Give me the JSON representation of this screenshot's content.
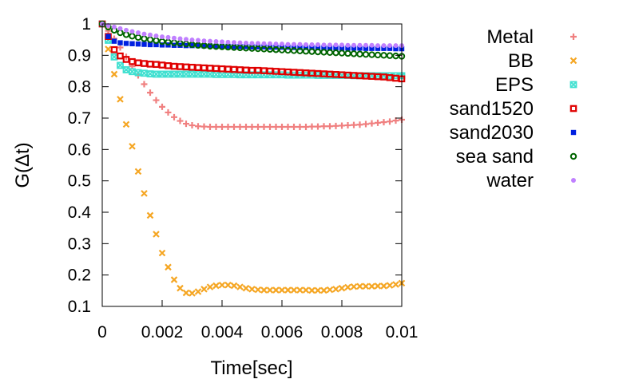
{
  "chart_data": {
    "type": "scatter",
    "title": "",
    "xlabel": "Time[sec]",
    "ylabel": "G(Δt)",
    "xlim": [
      0,
      0.01
    ],
    "ylim": [
      0.1,
      1.0
    ],
    "grid": false,
    "legend_position": "right, outside plot",
    "x_ticks": [
      {
        "value": 0,
        "label": "0"
      },
      {
        "value": 0.002,
        "label": "0.002"
      },
      {
        "value": 0.004,
        "label": "0.004"
      },
      {
        "value": 0.006,
        "label": "0.006"
      },
      {
        "value": 0.008,
        "label": "0.008"
      },
      {
        "value": 0.01,
        "label": "0.01"
      }
    ],
    "y_ticks": [
      {
        "value": 0.1,
        "label": "0.1"
      },
      {
        "value": 0.2,
        "label": "0.2"
      },
      {
        "value": 0.3,
        "label": "0.3"
      },
      {
        "value": 0.4,
        "label": "0.4"
      },
      {
        "value": 0.5,
        "label": "0.5"
      },
      {
        "value": 0.6,
        "label": "0.6"
      },
      {
        "value": 0.7,
        "label": "0.7"
      },
      {
        "value": 0.8,
        "label": "0.8"
      },
      {
        "value": 0.9,
        "label": "0.9"
      },
      {
        "value": 1.0,
        "label": "1"
      }
    ],
    "x_start": 0,
    "x_step": 0.0002,
    "series": [
      {
        "name": "Metal",
        "color": "#f08080",
        "marker": "plus",
        "values": [
          1.0,
          0.978,
          0.953,
          0.925,
          0.895,
          0.865,
          0.836,
          0.808,
          0.781,
          0.757,
          0.736,
          0.718,
          0.703,
          0.691,
          0.682,
          0.677,
          0.674,
          0.673,
          0.672,
          0.672,
          0.672,
          0.672,
          0.672,
          0.672,
          0.672,
          0.672,
          0.672,
          0.672,
          0.672,
          0.672,
          0.672,
          0.672,
          0.672,
          0.672,
          0.672,
          0.673,
          0.673,
          0.674,
          0.674,
          0.675,
          0.676,
          0.677,
          0.678,
          0.679,
          0.681,
          0.683,
          0.685,
          0.687,
          0.689,
          0.692,
          0.695
        ]
      },
      {
        "name": "BB",
        "color": "#f5a623",
        "marker": "cross",
        "values": [
          1.0,
          0.92,
          0.84,
          0.76,
          0.68,
          0.61,
          0.53,
          0.46,
          0.39,
          0.33,
          0.27,
          0.225,
          0.185,
          0.158,
          0.143,
          0.142,
          0.147,
          0.155,
          0.162,
          0.166,
          0.168,
          0.168,
          0.166,
          0.162,
          0.158,
          0.155,
          0.153,
          0.152,
          0.152,
          0.152,
          0.152,
          0.152,
          0.152,
          0.152,
          0.152,
          0.151,
          0.151,
          0.151,
          0.153,
          0.155,
          0.158,
          0.161,
          0.163,
          0.164,
          0.164,
          0.164,
          0.165,
          0.165,
          0.167,
          0.17,
          0.174
        ]
      },
      {
        "name": "EPS",
        "color": "#40e0d0",
        "marker": "xsquare",
        "values": [
          1.0,
          0.948,
          0.895,
          0.868,
          0.854,
          0.848,
          0.845,
          0.843,
          0.841,
          0.84,
          0.84,
          0.84,
          0.84,
          0.84,
          0.84,
          0.84,
          0.84,
          0.84,
          0.84,
          0.839,
          0.839,
          0.839,
          0.839,
          0.838,
          0.838,
          0.838,
          0.838,
          0.838,
          0.838,
          0.838,
          0.838,
          0.837,
          0.837,
          0.837,
          0.837,
          0.837,
          0.836,
          0.836,
          0.836,
          0.836,
          0.836,
          0.836,
          0.835,
          0.835,
          0.835,
          0.835,
          0.835,
          0.835,
          0.835,
          0.835,
          0.835
        ]
      },
      {
        "name": "sand1520",
        "color": "#e00000",
        "marker": "opensquare",
        "values": [
          1.0,
          0.96,
          0.918,
          0.898,
          0.887,
          0.88,
          0.876,
          0.874,
          0.872,
          0.871,
          0.869,
          0.867,
          0.865,
          0.864,
          0.863,
          0.862,
          0.861,
          0.86,
          0.859,
          0.858,
          0.857,
          0.856,
          0.855,
          0.854,
          0.853,
          0.852,
          0.852,
          0.851,
          0.85,
          0.849,
          0.848,
          0.847,
          0.846,
          0.845,
          0.844,
          0.843,
          0.842,
          0.841,
          0.84,
          0.839,
          0.838,
          0.837,
          0.836,
          0.835,
          0.834,
          0.833,
          0.832,
          0.831,
          0.829,
          0.827,
          0.825
        ]
      },
      {
        "name": "sand2030",
        "color": "#0020e0",
        "marker": "filledsquare",
        "values": [
          1.0,
          0.96,
          0.945,
          0.94,
          0.938,
          0.937,
          0.936,
          0.935,
          0.934,
          0.934,
          0.933,
          0.933,
          0.932,
          0.932,
          0.931,
          0.931,
          0.931,
          0.93,
          0.93,
          0.929,
          0.929,
          0.929,
          0.928,
          0.928,
          0.928,
          0.927,
          0.927,
          0.927,
          0.926,
          0.926,
          0.926,
          0.926,
          0.925,
          0.925,
          0.925,
          0.925,
          0.924,
          0.924,
          0.924,
          0.924,
          0.923,
          0.923,
          0.923,
          0.923,
          0.922,
          0.922,
          0.922,
          0.922,
          0.922,
          0.921,
          0.921
        ]
      },
      {
        "name": "sea sand",
        "color": "#006400",
        "marker": "opencircle",
        "values": [
          1.0,
          0.99,
          0.98,
          0.972,
          0.966,
          0.961,
          0.957,
          0.953,
          0.95,
          0.947,
          0.944,
          0.942,
          0.94,
          0.938,
          0.936,
          0.934,
          0.932,
          0.931,
          0.929,
          0.928,
          0.927,
          0.926,
          0.925,
          0.924,
          0.923,
          0.922,
          0.921,
          0.92,
          0.919,
          0.918,
          0.917,
          0.916,
          0.915,
          0.914,
          0.913,
          0.912,
          0.911,
          0.91,
          0.909,
          0.908,
          0.907,
          0.906,
          0.905,
          0.904,
          0.903,
          0.902,
          0.901,
          0.9,
          0.899,
          0.898,
          0.897
        ]
      },
      {
        "name": "water",
        "color": "#c080ff",
        "marker": "dot",
        "values": [
          1.0,
          0.995,
          0.99,
          0.985,
          0.98,
          0.976,
          0.972,
          0.968,
          0.965,
          0.962,
          0.959,
          0.957,
          0.955,
          0.953,
          0.951,
          0.949,
          0.948,
          0.946,
          0.945,
          0.944,
          0.943,
          0.942,
          0.941,
          0.94,
          0.939,
          0.938,
          0.938,
          0.937,
          0.937,
          0.936,
          0.936,
          0.935,
          0.935,
          0.935,
          0.934,
          0.934,
          0.934,
          0.933,
          0.933,
          0.933,
          0.933,
          0.932,
          0.932,
          0.932,
          0.932,
          0.932,
          0.931,
          0.931,
          0.931,
          0.931,
          0.931
        ]
      }
    ]
  }
}
